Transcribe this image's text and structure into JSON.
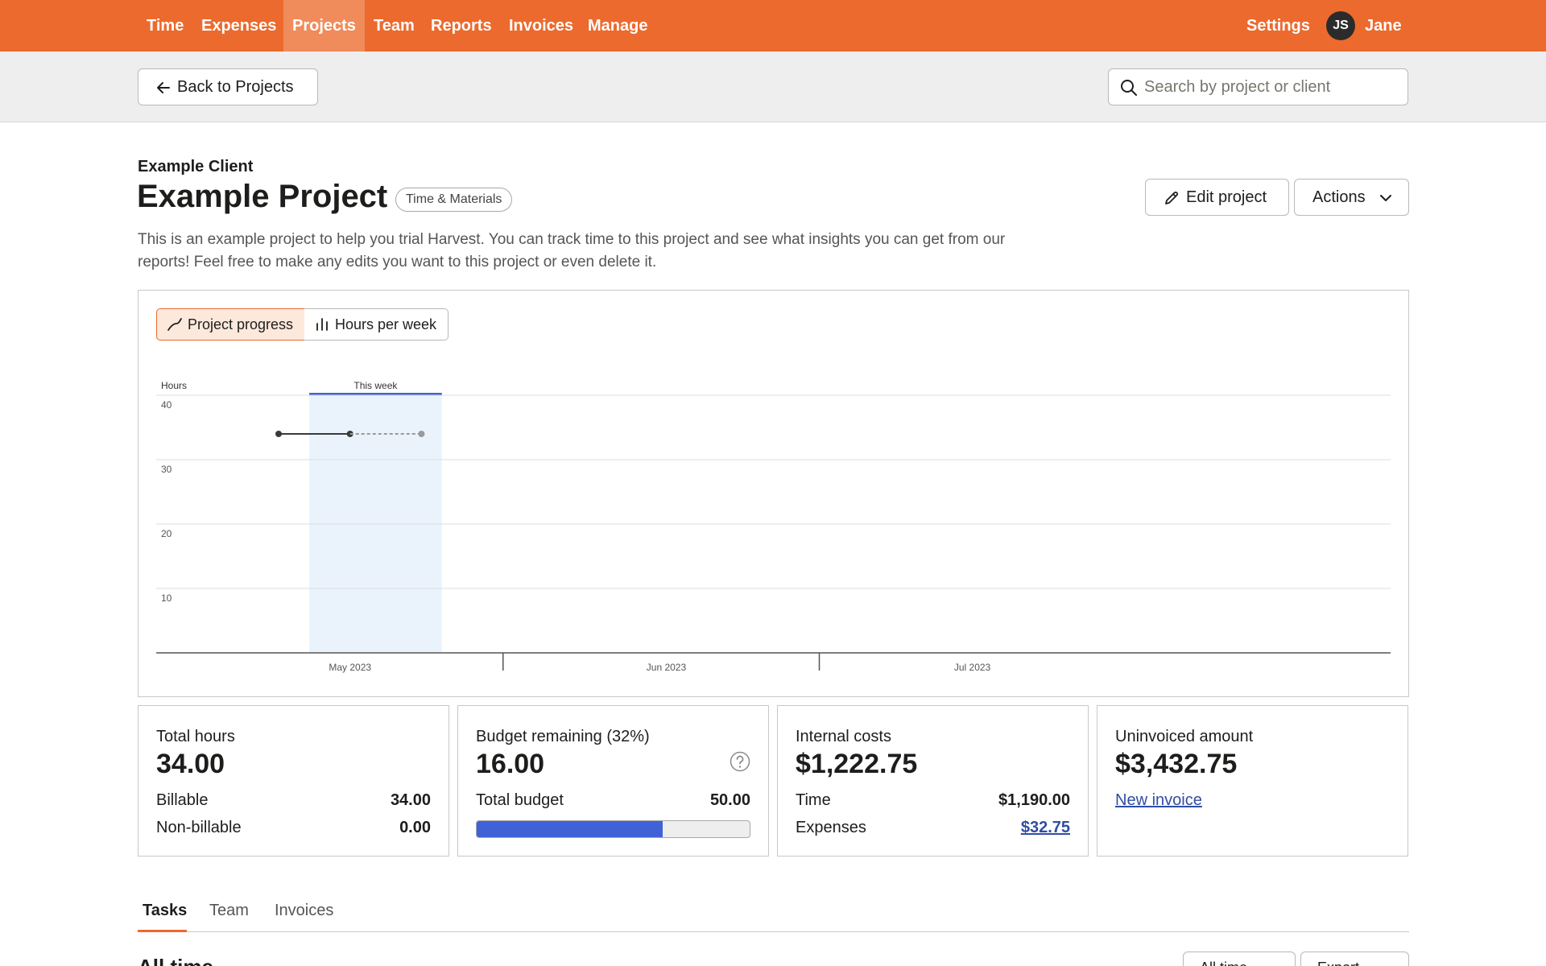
{
  "nav": {
    "items": [
      {
        "label": "Time"
      },
      {
        "label": "Expenses"
      },
      {
        "label": "Projects"
      },
      {
        "label": "Team"
      },
      {
        "label": "Reports"
      },
      {
        "label": "Invoices"
      },
      {
        "label": "Manage"
      }
    ],
    "active": "Projects",
    "settings_label": "Settings",
    "user_initials": "JS",
    "user_name": "Jane"
  },
  "subbar": {
    "back_label": "Back to Projects",
    "search_placeholder": "Search by project or client"
  },
  "project": {
    "client": "Example Client",
    "title": "Example Project",
    "type_badge": "Time & Materials",
    "description": "This is an example project to help you trial Harvest. You can track time to this project and see what insights you can get from our reports! Feel free to make any edits you want to this project or even delete it.",
    "edit_label": "Edit project",
    "actions_label": "Actions"
  },
  "chart_toggle": {
    "progress_label": "Project progress",
    "per_week_label": "Hours per week",
    "active": "Project progress"
  },
  "chart_data": {
    "type": "line",
    "ylabel": "Hours",
    "yticks": [
      40,
      30,
      20,
      10
    ],
    "ylim": [
      0,
      40
    ],
    "xticks": [
      "May 2023",
      "Jun 2023",
      "Jul 2023"
    ],
    "highlight_label": "This week",
    "series": [
      {
        "values": [
          {
            "x": "2023-04-24",
            "y": 34
          },
          {
            "x": "2023-05-01",
            "y": 34
          }
        ],
        "style": "solid"
      },
      {
        "values": [
          {
            "x": "2023-05-01",
            "y": 34
          },
          {
            "x": "2023-05-08",
            "y": 34
          }
        ],
        "style": "dashed"
      }
    ],
    "colors": {
      "actual": "#3a3a3a",
      "projected": "#9a9a9a",
      "highlight": "#eaf3fc",
      "highlight_bar": "#3f63d6"
    }
  },
  "stats": {
    "total_hours": {
      "label": "Total hours",
      "value": "34.00",
      "billable_label": "Billable",
      "billable_value": "34.00",
      "nonbillable_label": "Non-billable",
      "nonbillable_value": "0.00"
    },
    "budget": {
      "label": "Budget remaining (32%)",
      "value": "16.00",
      "total_label": "Total budget",
      "total_value": "50.00",
      "used_fraction": 0.68
    },
    "internal_costs": {
      "label": "Internal costs",
      "value": "$1,222.75",
      "time_label": "Time",
      "time_value": "$1,190.00",
      "expenses_label": "Expenses",
      "expenses_value": "$32.75"
    },
    "uninvoiced": {
      "label": "Uninvoiced amount",
      "value": "$3,432.75",
      "link_label": "New invoice"
    }
  },
  "tabs": [
    {
      "label": "Tasks"
    },
    {
      "label": "Team"
    },
    {
      "label": "Invoices"
    }
  ],
  "section": {
    "title": "All time",
    "range_label": "All time",
    "export_label": "Export"
  },
  "colors": {
    "brand": "#ec6a2e",
    "link": "#2f4da4",
    "budget_bar": "#3f63d6"
  }
}
